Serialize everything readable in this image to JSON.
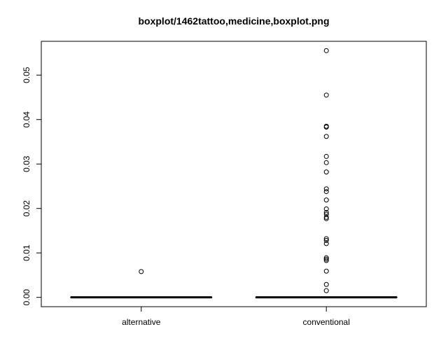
{
  "chart_data": {
    "type": "boxplot",
    "title": "boxplot/1462tattoo,medicine,boxplot.png",
    "xlabel": "",
    "ylabel": "",
    "ylim": [
      -0.0021,
      0.0576
    ],
    "yticks": [
      0.0,
      0.01,
      0.02,
      0.03,
      0.04,
      0.05
    ],
    "ytick_labels": [
      "0.00",
      "0.01",
      "0.02",
      "0.03",
      "0.04",
      "0.05"
    ],
    "grid": false,
    "legend": "none",
    "categories": [
      "alternative",
      "conventional"
    ],
    "boxes": [
      {
        "name": "alternative",
        "min": 0,
        "q1": 0,
        "median": 0,
        "q3": 0,
        "max": 0,
        "outliers": [
          0.0058
        ]
      },
      {
        "name": "conventional",
        "min": 0,
        "q1": 0,
        "median": 0,
        "q3": 0,
        "max": 0,
        "outliers": [
          0.0555,
          0.0455,
          0.0385,
          0.0383,
          0.0362,
          0.0317,
          0.0303,
          0.0282,
          0.0244,
          0.0238,
          0.0219,
          0.0199,
          0.0191,
          0.0187,
          0.018,
          0.0177,
          0.0132,
          0.0128,
          0.0121,
          0.0089,
          0.0086,
          0.0083,
          0.0059,
          0.0029,
          0.0015
        ]
      }
    ]
  }
}
